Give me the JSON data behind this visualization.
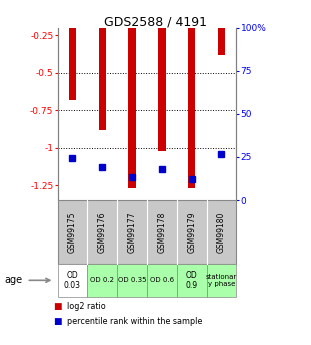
{
  "title": "GDS2588 / 4191",
  "samples": [
    "GSM99175",
    "GSM99176",
    "GSM99177",
    "GSM99178",
    "GSM99179",
    "GSM99180"
  ],
  "log2_ratio": [
    -0.68,
    -0.88,
    -1.27,
    -1.02,
    -1.27,
    -0.38
  ],
  "percentile_rank": [
    24.5,
    19.0,
    13.5,
    18.0,
    12.5,
    27.0
  ],
  "ylim_left": [
    -1.35,
    -0.2
  ],
  "ylim_right": [
    0,
    100
  ],
  "yticks_left": [
    -1.25,
    -1.0,
    -0.75,
    -0.5,
    -0.25
  ],
  "yticks_right": [
    0,
    25,
    50,
    75,
    100
  ],
  "ytick_labels_left": [
    "-1.25",
    "-1",
    "-0.75",
    "-0.5",
    "-0.25"
  ],
  "ytick_labels_right": [
    "0",
    "25",
    "50",
    "75",
    "100%"
  ],
  "dotted_lines": [
    -0.5,
    -0.75,
    -1.0
  ],
  "bar_color": "#cc0000",
  "dot_color": "#0000cc",
  "bar_width": 0.25,
  "age_labels": [
    "OD\n0.03",
    "OD 0.2",
    "OD 0.35",
    "OD 0.6",
    "OD\n0.9",
    "stationar\ny phase"
  ],
  "age_bg_colors": [
    "#ffffff",
    "#aaffaa",
    "#aaffaa",
    "#aaffaa",
    "#aaffaa",
    "#aaffaa"
  ],
  "sample_bg_color": "#c8c8c8",
  "legend_red": "log2 ratio",
  "legend_blue": "percentile rank within the sample"
}
